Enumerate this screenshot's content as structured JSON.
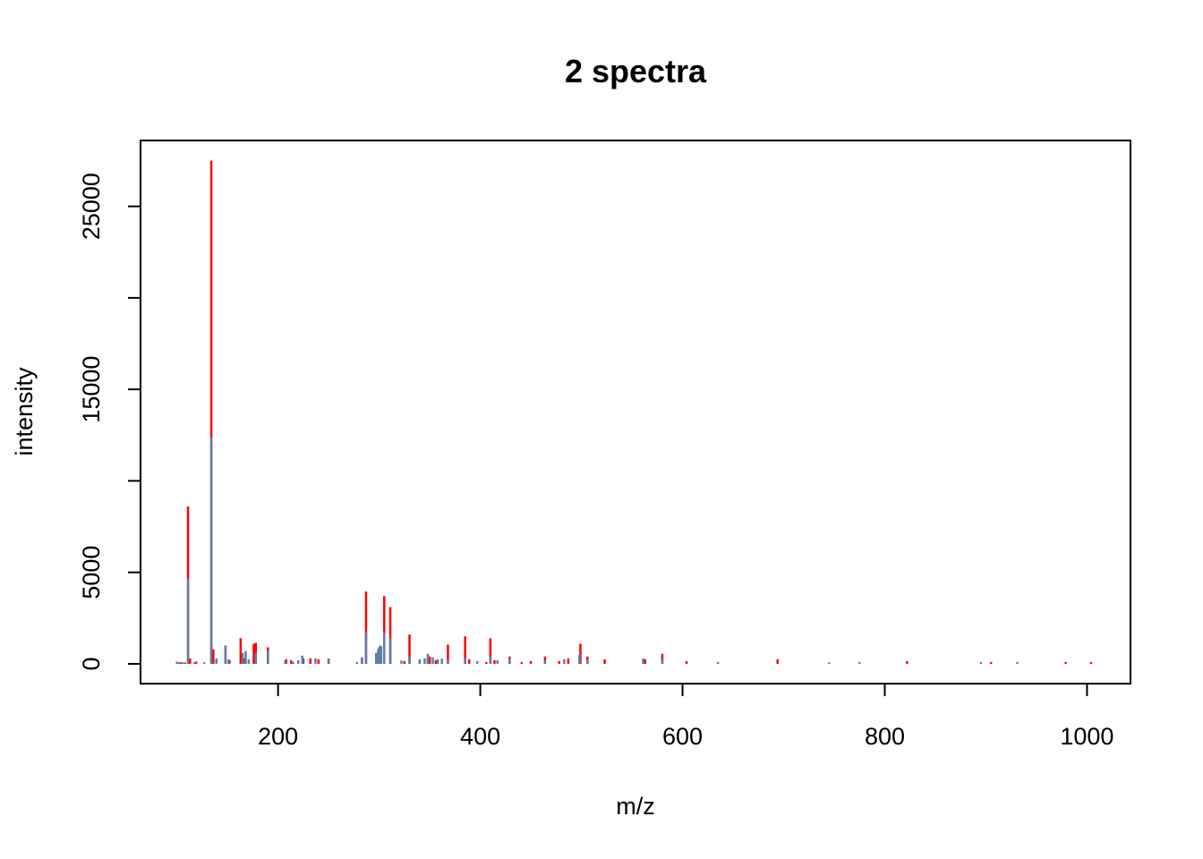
{
  "chart_data": {
    "type": "bar",
    "title": "2 spectra",
    "xlabel": "m/z",
    "ylabel": "intensity",
    "xlim": [
      64,
      1043
    ],
    "ylim": [
      -1080,
      28600
    ],
    "x_ticks": [
      200,
      400,
      600,
      800,
      1000
    ],
    "y_ticks": [
      0,
      5000,
      10000,
      15000,
      20000,
      25000
    ],
    "y_tick_labels": [
      "0",
      "5000",
      "",
      "15000",
      "",
      "25000"
    ],
    "grid": false,
    "legend": "none",
    "series": [
      {
        "color": "#ff0000",
        "x": [
          102,
          105,
          108,
          111,
          113,
          119,
          134,
          136,
          148,
          152,
          163,
          166,
          176,
          178,
          190,
          208,
          213,
          225,
          232,
          240,
          250,
          283,
          287,
          300,
          305,
          311,
          325,
          330,
          350,
          356,
          368,
          385,
          389,
          406,
          410,
          414,
          429,
          441,
          450,
          464,
          478,
          487,
          499,
          506,
          523,
          563,
          580,
          604,
          694,
          822,
          905,
          979,
          1004
        ],
        "values": [
          60,
          80,
          70,
          8600,
          300,
          120,
          27500,
          800,
          1000,
          200,
          1400,
          300,
          1100,
          1150,
          900,
          250,
          200,
          300,
          300,
          250,
          280,
          350,
          3950,
          900,
          3700,
          3100,
          150,
          1600,
          400,
          200,
          1050,
          1500,
          250,
          100,
          1400,
          200,
          400,
          100,
          150,
          400,
          150,
          300,
          1100,
          400,
          250,
          250,
          550,
          150,
          250,
          150,
          100,
          100,
          100
        ]
      },
      {
        "color": "#5b7faa",
        "x": [
          100,
          103,
          106,
          111,
          117,
          127,
          134,
          139,
          148,
          151,
          165,
          168,
          171,
          178,
          190,
          207,
          215,
          220,
          224,
          237,
          250,
          278,
          283,
          287,
          297,
          299,
          300,
          301,
          302,
          305,
          311,
          322,
          330,
          340,
          345,
          348,
          353,
          358,
          362,
          368,
          385,
          397,
          410,
          417,
          429,
          464,
          483,
          498,
          506,
          561,
          580,
          635,
          745,
          775,
          895,
          931
        ],
        "values": [
          120,
          100,
          60,
          4650,
          80,
          90,
          12400,
          300,
          1000,
          250,
          600,
          700,
          250,
          600,
          700,
          180,
          100,
          200,
          450,
          300,
          300,
          100,
          350,
          1700,
          600,
          800,
          900,
          1000,
          950,
          1700,
          1400,
          180,
          400,
          250,
          300,
          550,
          350,
          250,
          280,
          250,
          300,
          150,
          400,
          200,
          300,
          200,
          250,
          500,
          250,
          300,
          300,
          100,
          80,
          100,
          100,
          100
        ]
      }
    ]
  }
}
